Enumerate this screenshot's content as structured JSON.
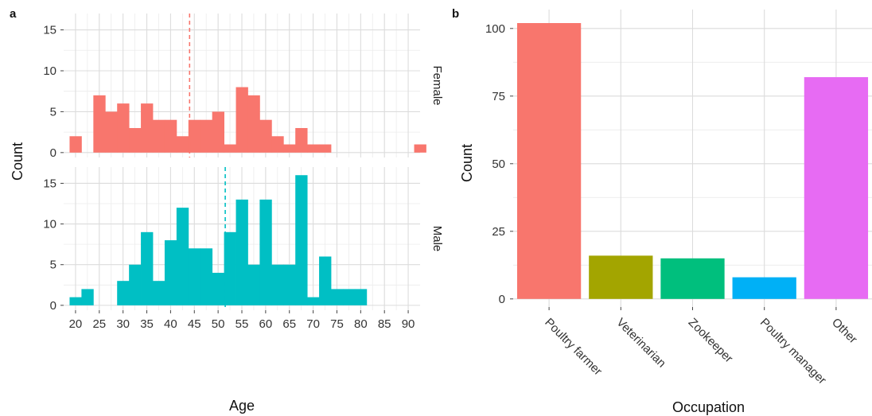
{
  "chart_data": [
    {
      "panel": "a",
      "type": "bar",
      "subtype": "faceted-histogram",
      "xlabel": "Age",
      "ylabel": "Count",
      "xlim": [
        17.5,
        92.5
      ],
      "x_ticks": [
        20,
        25,
        30,
        35,
        40,
        45,
        50,
        55,
        60,
        65,
        70,
        75,
        80,
        85,
        90
      ],
      "ylim": [
        -0.6,
        17
      ],
      "y_ticks": [
        0,
        5,
        10,
        15
      ],
      "bin_width": 2.5,
      "grid": true,
      "facets": [
        {
          "name": "Female",
          "color": "#F8766D",
          "mean_line": 44,
          "bins": [
            {
              "x": 20,
              "count": 2
            },
            {
              "x": 25,
              "count": 7
            },
            {
              "x": 27.5,
              "count": 5
            },
            {
              "x": 30,
              "count": 6
            },
            {
              "x": 32.5,
              "count": 3
            },
            {
              "x": 35,
              "count": 6
            },
            {
              "x": 37.5,
              "count": 4
            },
            {
              "x": 40,
              "count": 4
            },
            {
              "x": 42.5,
              "count": 2
            },
            {
              "x": 45,
              "count": 4
            },
            {
              "x": 47.5,
              "count": 4
            },
            {
              "x": 50,
              "count": 5
            },
            {
              "x": 52.5,
              "count": 1
            },
            {
              "x": 55,
              "count": 8
            },
            {
              "x": 57.5,
              "count": 7
            },
            {
              "x": 60,
              "count": 4
            },
            {
              "x": 62.5,
              "count": 2
            },
            {
              "x": 65,
              "count": 1
            },
            {
              "x": 67.5,
              "count": 3
            },
            {
              "x": 70,
              "count": 1
            },
            {
              "x": 72.5,
              "count": 1
            },
            {
              "x": 92.5,
              "count": 1
            }
          ]
        },
        {
          "name": "Male",
          "color": "#00BFC4",
          "mean_line": 51.5,
          "bins": [
            {
              "x": 20,
              "count": 1
            },
            {
              "x": 22.5,
              "count": 2
            },
            {
              "x": 30,
              "count": 3
            },
            {
              "x": 32.5,
              "count": 5
            },
            {
              "x": 35,
              "count": 9
            },
            {
              "x": 37.5,
              "count": 3
            },
            {
              "x": 40,
              "count": 8
            },
            {
              "x": 42.5,
              "count": 12
            },
            {
              "x": 45,
              "count": 7
            },
            {
              "x": 47.5,
              "count": 7
            },
            {
              "x": 50,
              "count": 4
            },
            {
              "x": 52.5,
              "count": 9
            },
            {
              "x": 55,
              "count": 13
            },
            {
              "x": 57.5,
              "count": 5
            },
            {
              "x": 60,
              "count": 13
            },
            {
              "x": 62.5,
              "count": 5
            },
            {
              "x": 65,
              "count": 5
            },
            {
              "x": 67.5,
              "count": 16
            },
            {
              "x": 70,
              "count": 1
            },
            {
              "x": 72.5,
              "count": 6
            },
            {
              "x": 75,
              "count": 2
            },
            {
              "x": 77.5,
              "count": 2
            },
            {
              "x": 80,
              "count": 2
            }
          ]
        }
      ]
    },
    {
      "panel": "b",
      "type": "bar",
      "xlabel": "Occupation",
      "ylabel": "Count",
      "ylim": [
        -3,
        107
      ],
      "y_ticks": [
        0,
        25,
        50,
        75,
        100
      ],
      "grid": true,
      "categories": [
        "Poultry farmer",
        "Veterinarian",
        "Zookeeper",
        "Poultry manager",
        "Other"
      ],
      "values": [
        102,
        16,
        15,
        8,
        82
      ],
      "colors": [
        "#F8766D",
        "#A3A500",
        "#00BF7D",
        "#00B0F6",
        "#E76BF3"
      ]
    }
  ]
}
